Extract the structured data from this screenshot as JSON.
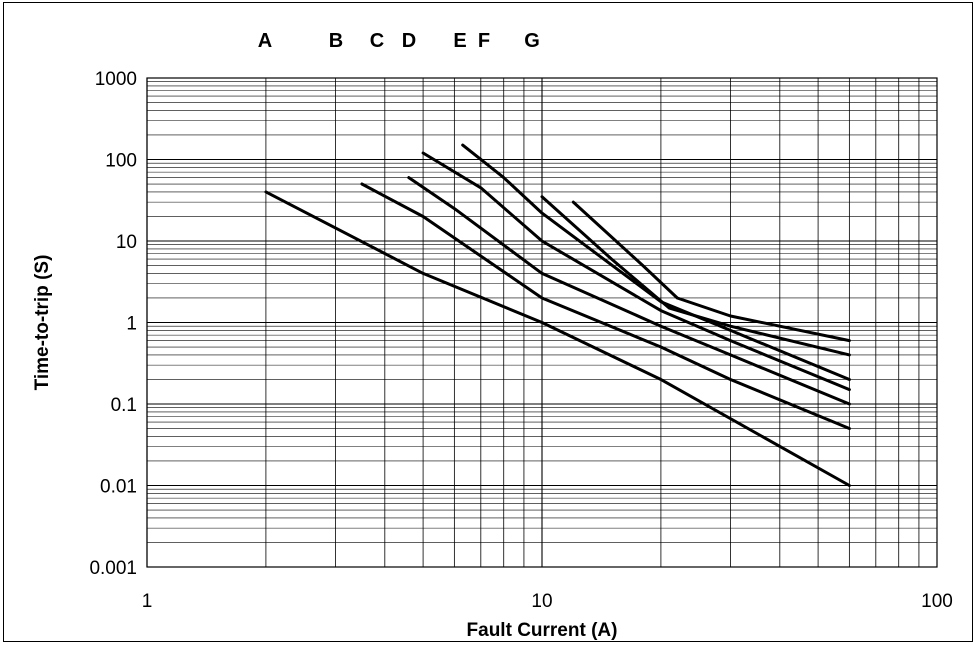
{
  "chart_data": {
    "type": "line",
    "title": "",
    "xlabel": "Fault Current (A)",
    "ylabel": "Time-to-trip (S)",
    "x_scale": "log",
    "y_scale": "log",
    "xlim": [
      1,
      100
    ],
    "ylim": [
      0.001,
      1000
    ],
    "grid": true,
    "x_tick_labels": [
      "1",
      "10",
      "100"
    ],
    "y_tick_labels": [
      "1000",
      "100",
      "10",
      "1",
      "0.1",
      "0.01",
      "0.001"
    ],
    "series": [
      {
        "name": "A",
        "points": [
          [
            2,
            40
          ],
          [
            5,
            4
          ],
          [
            10,
            1
          ],
          [
            20,
            0.2
          ],
          [
            60,
            0.01
          ]
        ]
      },
      {
        "name": "B",
        "points": [
          [
            3.5,
            50
          ],
          [
            5,
            20
          ],
          [
            10,
            2
          ],
          [
            20,
            0.5
          ],
          [
            30,
            0.2
          ],
          [
            60,
            0.05
          ]
        ]
      },
      {
        "name": "C",
        "points": [
          [
            4.6,
            60
          ],
          [
            6,
            25
          ],
          [
            10,
            4
          ],
          [
            20,
            0.9
          ],
          [
            30,
            0.4
          ],
          [
            60,
            0.1
          ]
        ]
      },
      {
        "name": "D",
        "points": [
          [
            5,
            120
          ],
          [
            7,
            45
          ],
          [
            10,
            10
          ],
          [
            20,
            1.4
          ],
          [
            30,
            0.6
          ],
          [
            60,
            0.15
          ]
        ]
      },
      {
        "name": "E",
        "points": [
          [
            6.3,
            150
          ],
          [
            8,
            60
          ],
          [
            10,
            22
          ],
          [
            20,
            1.8
          ],
          [
            30,
            0.8
          ],
          [
            60,
            0.2
          ]
        ]
      },
      {
        "name": "F",
        "points": [
          [
            10,
            35
          ],
          [
            15,
            6
          ],
          [
            21,
            1.5
          ],
          [
            30,
            0.9
          ],
          [
            60,
            0.4
          ]
        ]
      },
      {
        "name": "G",
        "points": [
          [
            12,
            30
          ],
          [
            18,
            5
          ],
          [
            22,
            2
          ],
          [
            30,
            1.2
          ],
          [
            60,
            0.6
          ]
        ]
      }
    ],
    "curve_labels": [
      "A",
      "B",
      "C",
      "D",
      "E",
      "F",
      "G"
    ]
  }
}
